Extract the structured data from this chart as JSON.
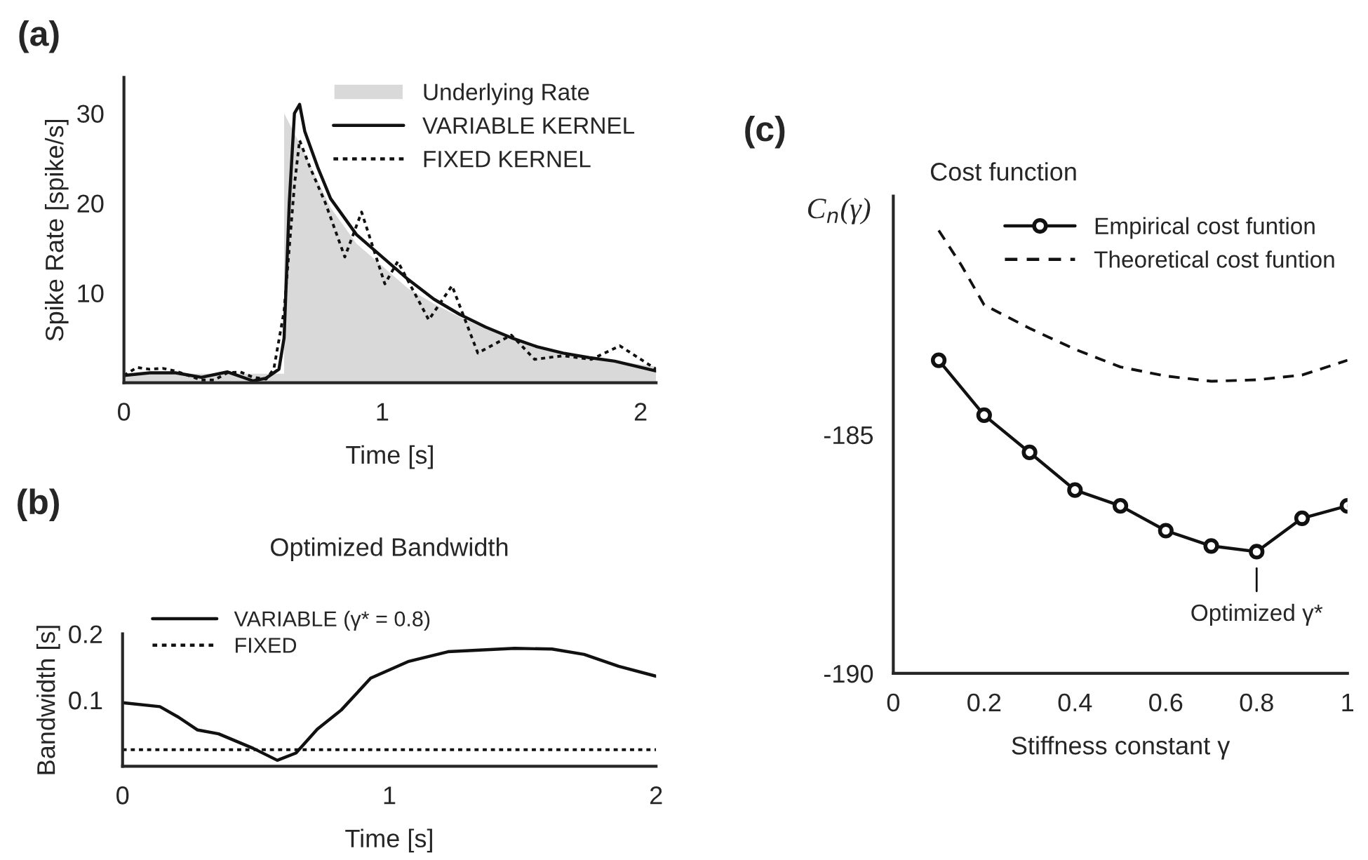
{
  "chart_data": [
    {
      "type": "line",
      "annotations": [
        "(a)"
      ],
      "xlabel": "Time [s]",
      "ylabel": "Spike Rate [spike/s]",
      "xlim": [
        0,
        2.06
      ],
      "xticks": [
        0,
        1,
        2
      ],
      "ylim": [
        0,
        34
      ],
      "yticks": [
        10,
        20,
        30
      ],
      "grid": false,
      "legend": "top right",
      "series": [
        {
          "name": "Underlying Rate",
          "type": "area",
          "color": "#d9d9d9",
          "x": [
            0,
            0.62,
            0.62,
            0.7,
            0.8,
            0.9,
            1.0,
            1.1,
            1.2,
            1.3,
            1.4,
            1.5,
            1.6,
            1.7,
            1.8,
            1.9,
            2.06
          ],
          "values": [
            1,
            1,
            30,
            25.5,
            19.5,
            15.5,
            13,
            10.5,
            8.8,
            7.3,
            6,
            5,
            4,
            3.3,
            2.8,
            2.4,
            1.8
          ]
        },
        {
          "name": "VARIABLE KERNEL",
          "type": "line",
          "color": "#111111",
          "line_style": "solid",
          "x": [
            0,
            0.1,
            0.2,
            0.3,
            0.4,
            0.5,
            0.55,
            0.6,
            0.62,
            0.64,
            0.66,
            0.68,
            0.7,
            0.75,
            0.8,
            0.9,
            1.0,
            1.1,
            1.2,
            1.3,
            1.4,
            1.5,
            1.6,
            1.7,
            1.8,
            1.9,
            2.06
          ],
          "values": [
            0.8,
            1.1,
            1.1,
            0.6,
            1.2,
            0.2,
            0.5,
            1.5,
            5,
            20,
            30,
            31,
            28,
            24,
            20.5,
            16.5,
            14,
            11.5,
            9.3,
            7.6,
            6.2,
            5,
            4,
            3.3,
            2.8,
            2.4,
            1.3
          ]
        },
        {
          "name": "FIXED KERNEL",
          "type": "line",
          "color": "#111111",
          "line_style": "dotted",
          "x": [
            0,
            0.05,
            0.1,
            0.15,
            0.2,
            0.25,
            0.3,
            0.35,
            0.4,
            0.45,
            0.5,
            0.55,
            0.58,
            0.62,
            0.66,
            0.68,
            0.72,
            0.78,
            0.855,
            0.92,
            1.01,
            1.06,
            1.18,
            1.27,
            1.37,
            1.5,
            1.59,
            1.7,
            1.81,
            1.92,
            2.06
          ],
          "values": [
            0.8,
            1.7,
            1.5,
            1.6,
            1.3,
            0.8,
            0.3,
            0.3,
            1.1,
            1.2,
            0.6,
            0.4,
            1.5,
            8,
            22,
            27,
            24,
            20,
            14,
            19,
            11,
            13.5,
            7,
            10.8,
            3.3,
            5.3,
            2.6,
            3,
            2.6,
            4.1,
            1.5
          ]
        }
      ]
    },
    {
      "type": "line",
      "annotations": [
        "(b)"
      ],
      "title": "Optimized Bandwidth",
      "xlabel": "Time [s]",
      "ylabel": "Bandwidth [s]",
      "xlim": [
        0,
        2
      ],
      "xticks": [
        0,
        1,
        2
      ],
      "ylim": [
        0,
        0.2
      ],
      "yticks": [
        0.1,
        0.2
      ],
      "grid": false,
      "legend": "top left",
      "series": [
        {
          "name": "VARIABLE (γ* = 0.8)",
          "color": "#111111",
          "line_style": "solid",
          "x": [
            0,
            0.14,
            0.21,
            0.28,
            0.36,
            0.49,
            0.58,
            0.65,
            0.73,
            0.82,
            0.93,
            1.07,
            1.22,
            1.47,
            1.61,
            1.73,
            1.86,
            2.0
          ],
          "values": [
            0.096,
            0.09,
            0.074,
            0.055,
            0.049,
            0.027,
            0.009,
            0.02,
            0.056,
            0.085,
            0.133,
            0.158,
            0.173,
            0.178,
            0.177,
            0.169,
            0.151,
            0.136
          ]
        },
        {
          "name": "FIXED",
          "color": "#111111",
          "line_style": "dotted",
          "x": [
            0,
            2
          ],
          "values": [
            0.025,
            0.025
          ]
        }
      ]
    },
    {
      "type": "line",
      "annotations": [
        "(c)",
        "Optimized γ*"
      ],
      "title": "Cost function",
      "xlabel": "Stiffness constant γ",
      "ylabel": "C$_{n}$(γ)",
      "xlim": [
        0,
        1
      ],
      "xticks": [
        0,
        0.2,
        0.4,
        0.6,
        0.8,
        1
      ],
      "ylim": [
        -190,
        -180
      ],
      "yticks": [
        -190,
        -185
      ],
      "grid": false,
      "legend": "top right",
      "series": [
        {
          "name": "Empirical cost funtion",
          "color": "#111111",
          "line_style": "solid",
          "marker": "circle",
          "x": [
            0.1,
            0.2,
            0.3,
            0.4,
            0.5,
            0.6,
            0.7,
            0.8,
            0.9,
            1.0
          ],
          "values": [
            -183.44,
            -184.59,
            -185.37,
            -186.16,
            -186.49,
            -187.01,
            -187.33,
            -187.45,
            -186.75,
            -186.49
          ]
        },
        {
          "name": "Theoretical cost funtion",
          "color": "#111111",
          "line_style": "dashed",
          "x": [
            0.1,
            0.15,
            0.2,
            0.3,
            0.4,
            0.5,
            0.6,
            0.7,
            0.8,
            0.9,
            1.0
          ],
          "values": [
            -180.72,
            -181.45,
            -182.28,
            -182.77,
            -183.21,
            -183.58,
            -183.77,
            -183.88,
            -183.85,
            -183.75,
            -183.44
          ]
        }
      ]
    }
  ]
}
